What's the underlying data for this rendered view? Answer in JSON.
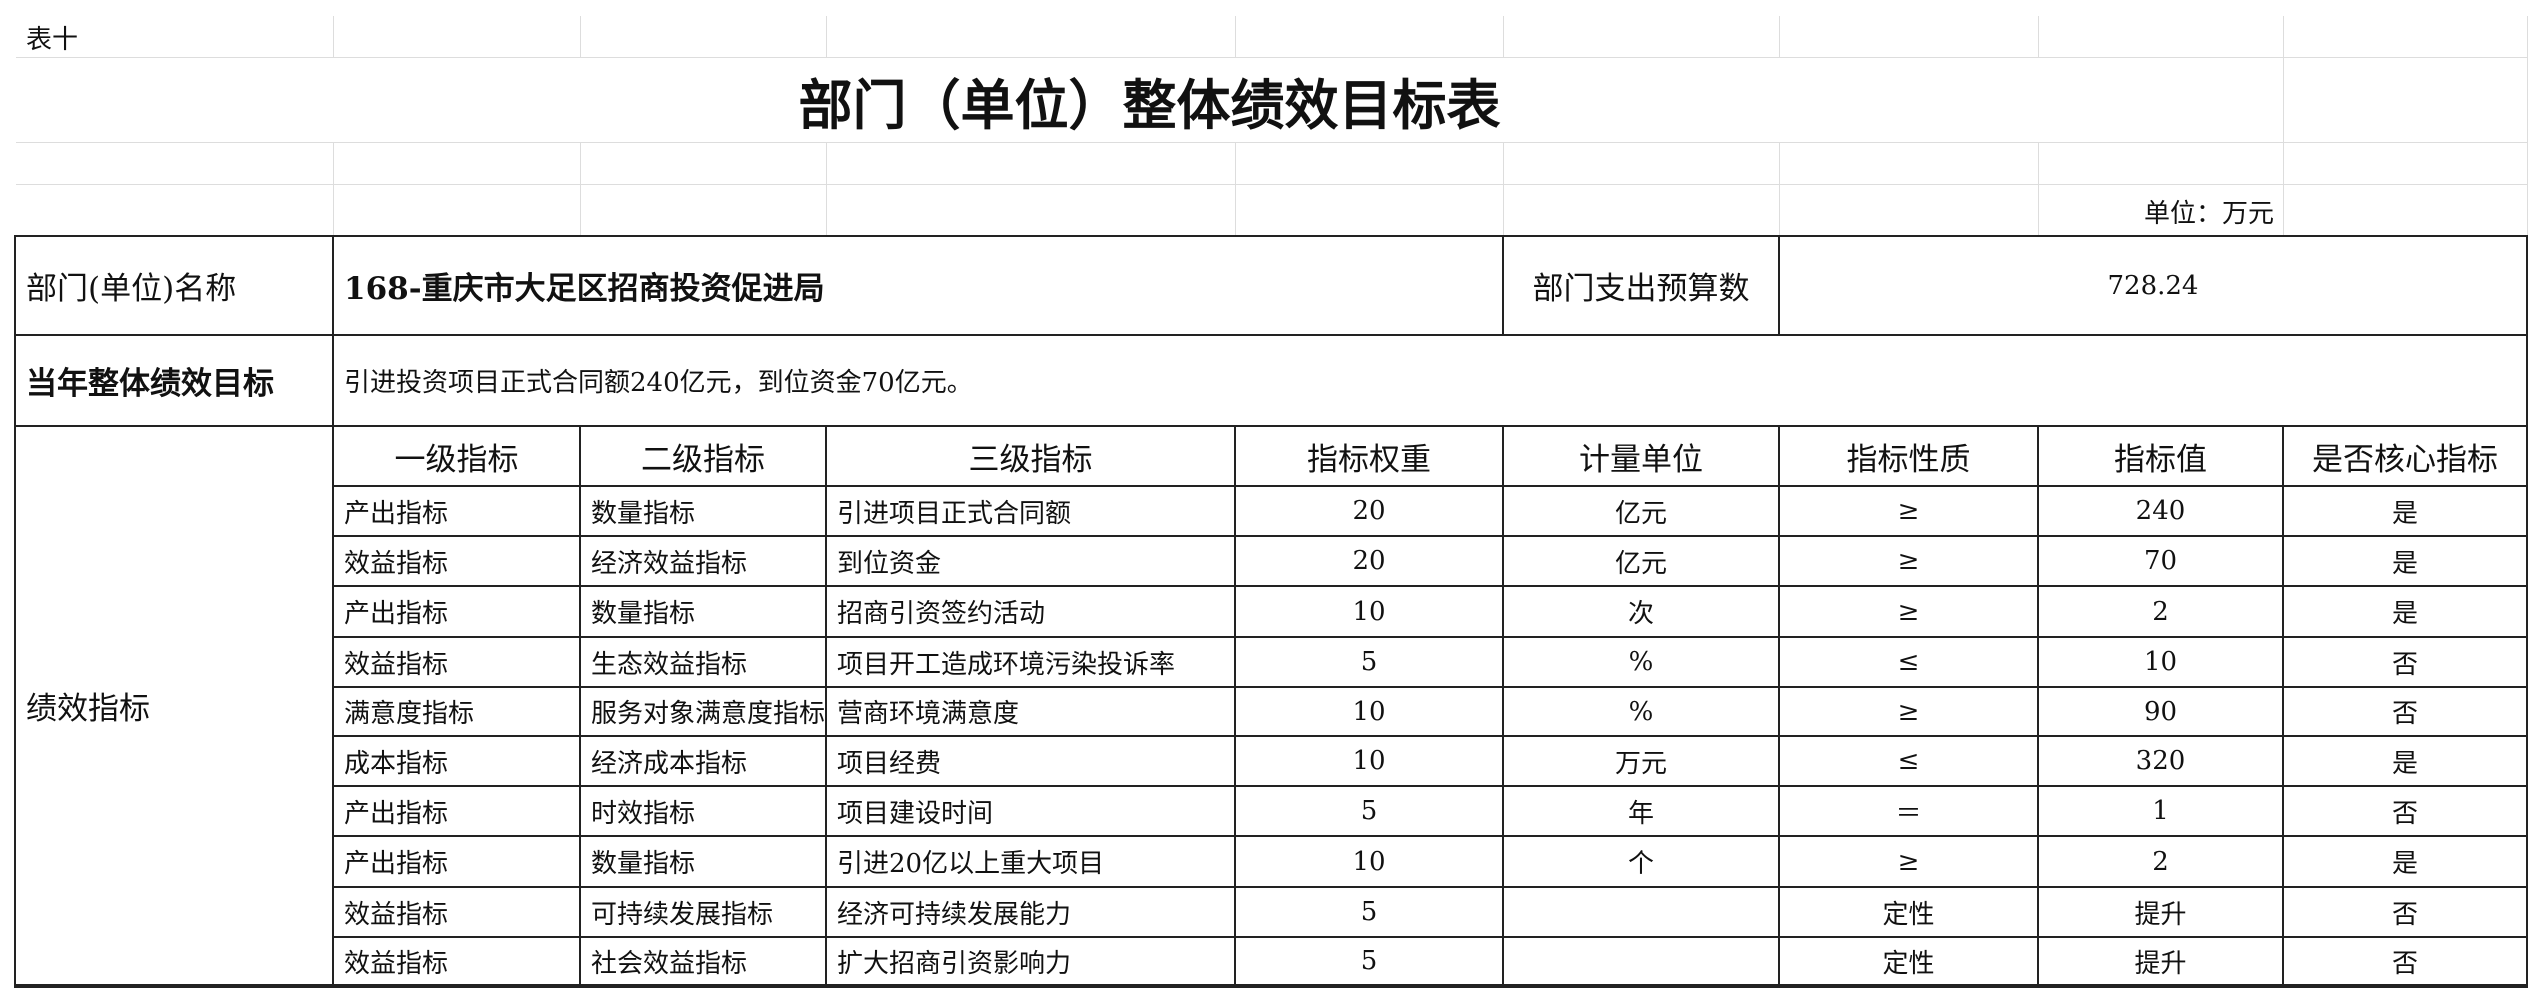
{
  "caption": "表十",
  "title": "部门（单位）整体绩效目标表",
  "unit": "单位：万元",
  "dept": {
    "label": "部门(单位)名称",
    "name": "168-重庆市大足区招商投资促进局",
    "budget_label": "部门支出预算数",
    "budget": 728.24
  },
  "goal": {
    "label": "当年整体绩效目标",
    "text": "引进投资项目正式合同额240亿元，到位资金70亿元。"
  },
  "indicators": {
    "label": "绩效指标",
    "headers": [
      "一级指标",
      "二级指标",
      "三级指标",
      "指标权重",
      "计量单位",
      "指标性质",
      "指标值",
      "是否核心指标"
    ],
    "rows": [
      [
        "产出指标",
        "数量指标",
        "引进项目正式合同额",
        20,
        "亿元",
        "≥",
        240,
        "是"
      ],
      [
        "效益指标",
        "经济效益指标",
        "到位资金",
        20,
        "亿元",
        "≥",
        70,
        "是"
      ],
      [
        "产出指标",
        "数量指标",
        "招商引资签约活动",
        10,
        "次",
        "≥",
        2,
        "是"
      ],
      [
        "效益指标",
        "生态效益指标",
        "项目开工造成环境污染投诉率",
        5,
        "%",
        "≤",
        10,
        "否"
      ],
      [
        "满意度指标",
        "服务对象满意度指标",
        "营商环境满意度",
        10,
        "%",
        "≥",
        90,
        "否"
      ],
      [
        "成本指标",
        "经济成本指标",
        "项目经费",
        10,
        "万元",
        "≤",
        320,
        "是"
      ],
      [
        "产出指标",
        "时效指标",
        "项目建设时间",
        5,
        "年",
        "＝",
        1,
        "否"
      ],
      [
        "产出指标",
        "数量指标",
        "引进20亿以上重大项目",
        10,
        "个",
        "≥",
        2,
        "是"
      ],
      [
        "效益指标",
        "可持续发展指标",
        "经济可持续发展能力",
        5,
        null,
        "定性",
        "提升",
        "否"
      ],
      [
        "效益指标",
        "社会效益指标",
        "扩大招商引资影响力",
        5,
        null,
        "定性",
        "提升",
        "否"
      ]
    ]
  }
}
